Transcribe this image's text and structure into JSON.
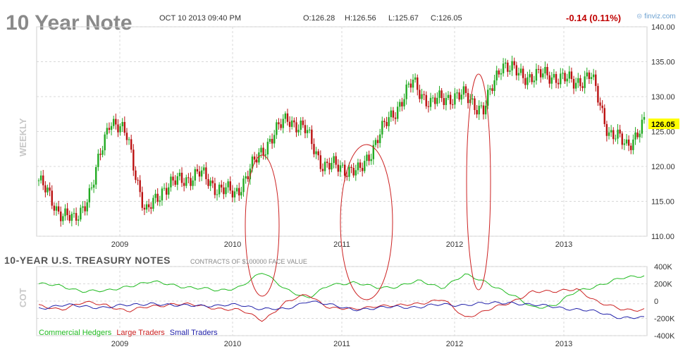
{
  "header": {
    "title": "10 Year Note",
    "datetime": "OCT 10 2013 09:40 PM",
    "open": "O:126.28",
    "high": "H:126.56",
    "low": "L:125.67",
    "close": "C:126.05",
    "change": "-0.14 (0.11%)",
    "brand": "finviz.com"
  },
  "cot_panel": {
    "title": "10-YEAR U.S. TREASURY NOTES",
    "subtitle": "CONTRACTS OF $100000 FACE VALUE",
    "ylabel": "COT",
    "legend": [
      {
        "name": "Commercial Hedgers",
        "color": "#22bb22"
      },
      {
        "name": "Large Traders",
        "color": "#cc2222"
      },
      {
        "name": "Small Traders",
        "color": "#2222aa"
      }
    ]
  },
  "colors": {
    "up": "#22aa22",
    "down": "#bb1111",
    "highlight": "#ffff00",
    "ellipse": "#cc2222"
  },
  "chart_data": [
    {
      "type": "line",
      "title": "",
      "ylabel": "WEEKLY",
      "ylim": [
        110,
        140
      ],
      "yticks": [
        "140.00",
        "135.00",
        "130.00",
        "125.00",
        "120.00",
        "115.00",
        "110.00"
      ],
      "xticks": [
        "2009",
        "2010",
        "2011",
        "2012",
        "2013"
      ],
      "last_price_label": "126.05",
      "series": [
        {
          "x": [
            "2008-05",
            "2008-08",
            "2008-10",
            "2008-12",
            "2009-01",
            "2009-03",
            "2009-05",
            "2009-07",
            "2009-09",
            "2009-11",
            "2010-01",
            "2010-03",
            "2010-05",
            "2010-07",
            "2010-09",
            "2010-11",
            "2011-01",
            "2011-03",
            "2011-05",
            "2011-07",
            "2011-08",
            "2011-10",
            "2011-12",
            "2012-02",
            "2012-04",
            "2012-05",
            "2012-07",
            "2012-09",
            "2012-11",
            "2013-01",
            "2013-03",
            "2013-05",
            "2013-07",
            "2013-08",
            "2013-10"
          ],
          "values": [
            118,
            114,
            112,
            117,
            127,
            124,
            113,
            117,
            118,
            119,
            117,
            116,
            120,
            124,
            127,
            125,
            120,
            120,
            119,
            124,
            128,
            132,
            129,
            130,
            130,
            128,
            135,
            133,
            133,
            133,
            132,
            133,
            125,
            123,
            126
          ]
        }
      ]
    },
    {
      "type": "line",
      "title": "",
      "ylabel": "COT",
      "ylim": [
        -400000,
        400000
      ],
      "yticks": [
        "400K",
        "200K",
        "0",
        "-200K",
        "-400K"
      ],
      "xticks": [
        "2009",
        "2010",
        "2011",
        "2012",
        "2013"
      ],
      "series": [
        {
          "name": "Commercial Hedgers",
          "values": [
            200000,
            170000,
            120000,
            110000,
            180000,
            220000,
            190000,
            150000,
            120000,
            170000,
            330000,
            150000,
            20000,
            200000,
            210000,
            160000,
            170000,
            230000,
            160000,
            300000,
            220000,
            80000,
            -70000,
            -50000,
            110000,
            190000,
            260000,
            300000
          ]
        },
        {
          "name": "Large Traders",
          "values": [
            -60000,
            -90000,
            -20000,
            -40000,
            -120000,
            -60000,
            -30000,
            -50000,
            -80000,
            -110000,
            -220000,
            -20000,
            80000,
            -80000,
            -100000,
            -50000,
            -60000,
            -20000,
            20000,
            -190000,
            -100000,
            -30000,
            120000,
            100000,
            150000,
            -30000,
            -90000,
            -100000
          ]
        },
        {
          "name": "Small Traders",
          "values": [
            -80000,
            -50000,
            -60000,
            -70000,
            -50000,
            -20000,
            -60000,
            -40000,
            -60000,
            -40000,
            -90000,
            -100000,
            10000,
            -50000,
            -90000,
            -90000,
            -60000,
            -70000,
            -40000,
            -40000,
            -30000,
            -10000,
            -50000,
            -60000,
            -100000,
            -130000,
            -190000,
            -200000
          ]
        }
      ]
    }
  ]
}
